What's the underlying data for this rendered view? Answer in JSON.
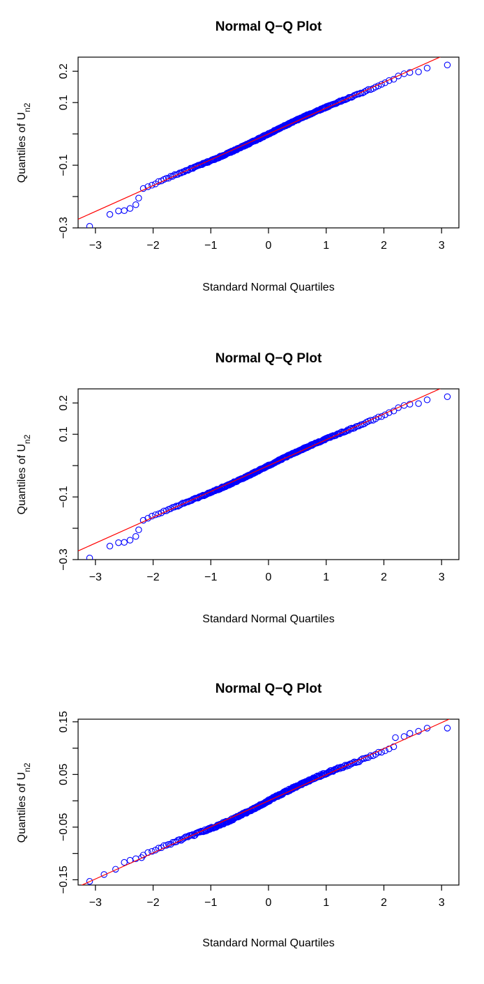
{
  "chart_data": [
    {
      "type": "scatter",
      "title": "Normal Q−Q Plot",
      "xlabel": "Standard Normal Quartiles",
      "ylabel_main": "Quantiles of U",
      "ylabel_sub": "n2",
      "xlim": [
        -3.3,
        3.3
      ],
      "ylim": [
        -0.3,
        0.245
      ],
      "xticks": [
        -3,
        -2,
        -1,
        0,
        1,
        2,
        3
      ],
      "xtick_labels": [
        "−3",
        "−2",
        "−1",
        "0",
        "1",
        "2",
        "3"
      ],
      "yticks": [
        -0.3,
        -0.1,
        0.1,
        0.2
      ],
      "ytick_labels": [
        "−0.3",
        "−0.1",
        "0.1",
        "0.2"
      ],
      "yticks_minor": [
        -0.2,
        0.0
      ],
      "reference_line": {
        "intercept": 0.0,
        "slope": 0.0825,
        "color": "#ff0000"
      },
      "point_color": "#0000ff",
      "n_points": 300,
      "tail_points": [
        [
          -3.1,
          -0.295
        ],
        [
          -2.75,
          -0.257
        ],
        [
          -2.6,
          -0.246
        ],
        [
          -2.5,
          -0.245
        ],
        [
          -2.4,
          -0.238
        ],
        [
          -2.3,
          -0.226
        ],
        [
          -2.25,
          -0.205
        ],
        [
          2.25,
          0.185
        ],
        [
          2.35,
          0.192
        ],
        [
          2.45,
          0.196
        ],
        [
          2.6,
          0.198
        ],
        [
          2.75,
          0.21
        ],
        [
          3.1,
          0.22
        ]
      ]
    },
    {
      "type": "scatter",
      "title": "Normal Q−Q Plot",
      "xlabel": "Standard Normal Quartiles",
      "ylabel_main": "Quantiles of U",
      "ylabel_sub": "n2",
      "xlim": [
        -3.3,
        3.3
      ],
      "ylim": [
        -0.3,
        0.245
      ],
      "xticks": [
        -3,
        -2,
        -1,
        0,
        1,
        2,
        3
      ],
      "xtick_labels": [
        "−3",
        "−2",
        "−1",
        "0",
        "1",
        "2",
        "3"
      ],
      "yticks": [
        -0.3,
        -0.1,
        0.1,
        0.2
      ],
      "ytick_labels": [
        "−0.3",
        "−0.1",
        "0.1",
        "0.2"
      ],
      "yticks_minor": [
        -0.2,
        0.0
      ],
      "reference_line": {
        "intercept": 0.0,
        "slope": 0.0825,
        "color": "#ff0000"
      },
      "point_color": "#0000ff",
      "n_points": 300,
      "tail_points": [
        [
          -3.1,
          -0.295
        ],
        [
          -2.75,
          -0.257
        ],
        [
          -2.6,
          -0.246
        ],
        [
          -2.5,
          -0.245
        ],
        [
          -2.4,
          -0.238
        ],
        [
          -2.3,
          -0.226
        ],
        [
          -2.25,
          -0.205
        ],
        [
          2.25,
          0.185
        ],
        [
          2.35,
          0.192
        ],
        [
          2.45,
          0.196
        ],
        [
          2.6,
          0.198
        ],
        [
          2.75,
          0.21
        ],
        [
          3.1,
          0.22
        ]
      ]
    },
    {
      "type": "scatter",
      "title": "Normal Q−Q Plot",
      "xlabel": "Standard Normal Quartiles",
      "ylabel_main": "Quantiles of U",
      "ylabel_sub": "n2",
      "xlim": [
        -3.3,
        3.3
      ],
      "ylim": [
        -0.16,
        0.155
      ],
      "xticks": [
        -3,
        -2,
        -1,
        0,
        1,
        2,
        3
      ],
      "xtick_labels": [
        "−3",
        "−2",
        "−1",
        "0",
        "1",
        "2",
        "3"
      ],
      "yticks": [
        -0.15,
        -0.05,
        0.05,
        0.15
      ],
      "ytick_labels": [
        "−0.15",
        "−0.05",
        "0.05",
        "0.15"
      ],
      "yticks_minor": [
        -0.1,
        0.0,
        0.1
      ],
      "reference_line": {
        "intercept": 0.0,
        "slope": 0.0495,
        "color": "#ff0000"
      },
      "point_color": "#0000ff",
      "n_points": 300,
      "tail_points": [
        [
          -3.1,
          -0.153
        ],
        [
          -2.85,
          -0.14
        ],
        [
          -2.65,
          -0.13
        ],
        [
          -2.5,
          -0.117
        ],
        [
          -2.4,
          -0.113
        ],
        [
          -2.3,
          -0.11
        ],
        [
          -2.2,
          -0.108
        ],
        [
          2.2,
          0.12
        ],
        [
          2.35,
          0.122
        ],
        [
          2.45,
          0.128
        ],
        [
          2.6,
          0.132
        ],
        [
          2.75,
          0.138
        ],
        [
          3.1,
          0.138
        ]
      ]
    }
  ]
}
